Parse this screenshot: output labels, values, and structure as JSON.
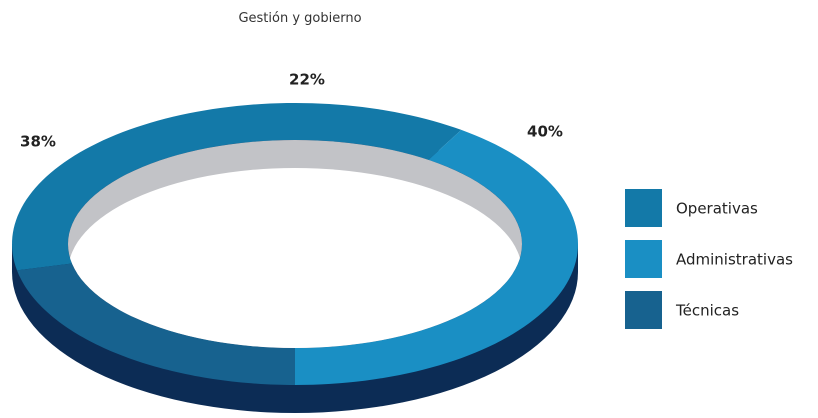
{
  "chart_data": {
    "type": "pie",
    "title": "Gestión y gobierno",
    "categories": [
      "Operativas",
      "Administrativas",
      "Técnicas"
    ],
    "values": [
      38,
      40,
      22
    ],
    "value_labels": [
      "38%",
      "40%",
      "22%"
    ],
    "colors": [
      "#1379a8",
      "#1a8fc4",
      "#17628f"
    ],
    "legend": "right"
  }
}
